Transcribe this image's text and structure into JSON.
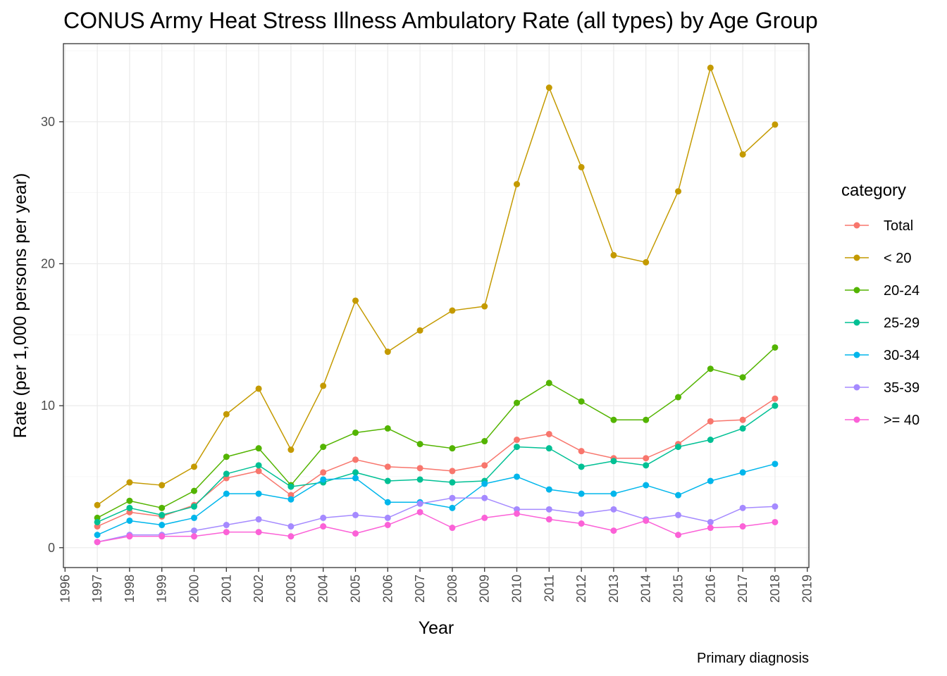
{
  "chart_data": {
    "type": "line",
    "title": "CONUS Army Heat Stress Illness Ambulatory Rate (all types) by Age Group",
    "xlabel": "Year",
    "ylabel": "Rate (per 1,000 persons per year)",
    "caption": "Primary diagnosis",
    "legend_title": "category",
    "legend_position": "right",
    "grid": true,
    "xlim": [
      1995.95,
      2019.05
    ],
    "ylim": [
      -1.4,
      35.5
    ],
    "x_ticks": [
      1996,
      1997,
      1998,
      1999,
      2000,
      2001,
      2002,
      2003,
      2004,
      2005,
      2006,
      2007,
      2008,
      2009,
      2010,
      2011,
      2012,
      2013,
      2014,
      2015,
      2016,
      2017,
      2018,
      2019
    ],
    "x_tick_labels": [
      "1996",
      "1997",
      "1998",
      "1999",
      "2000",
      "2001",
      "2002",
      "2003",
      "2004",
      "2005",
      "2006",
      "2007",
      "2008",
      "2009",
      "2010",
      "2011",
      "2012",
      "2013",
      "2014",
      "2015",
      "2016",
      "2017",
      "2018",
      "2019"
    ],
    "y_ticks": [
      0,
      10,
      20,
      30
    ],
    "y_tick_labels": [
      "0",
      "10",
      "20",
      "30"
    ],
    "x": [
      1997,
      1998,
      1999,
      2000,
      2001,
      2002,
      2003,
      2004,
      2005,
      2006,
      2007,
      2008,
      2009,
      2010,
      2011,
      2012,
      2013,
      2014,
      2015,
      2016,
      2017,
      2018
    ],
    "series": [
      {
        "name": "Total",
        "color": "#F8766D",
        "values": [
          1.5,
          2.5,
          2.2,
          3.0,
          4.9,
          5.4,
          3.7,
          5.3,
          6.2,
          5.7,
          5.6,
          5.4,
          5.8,
          7.6,
          8.0,
          6.8,
          6.3,
          6.3,
          7.3,
          8.9,
          9.0,
          10.5
        ]
      },
      {
        "name": "< 20",
        "color": "#C49A00",
        "values": [
          3.0,
          4.6,
          4.4,
          5.7,
          9.4,
          11.2,
          6.9,
          11.4,
          17.4,
          13.8,
          15.3,
          16.7,
          17.0,
          25.6,
          32.4,
          26.8,
          20.6,
          20.1,
          25.1,
          33.8,
          27.7,
          29.8
        ]
      },
      {
        "name": "20-24",
        "color": "#53B400",
        "values": [
          2.1,
          3.3,
          2.8,
          4.0,
          6.4,
          7.0,
          4.4,
          7.1,
          8.1,
          8.4,
          7.3,
          7.0,
          7.5,
          10.2,
          11.6,
          10.3,
          9.0,
          9.0,
          10.6,
          12.6,
          12.0,
          14.1
        ]
      },
      {
        "name": "25-29",
        "color": "#00C094",
        "values": [
          1.8,
          2.8,
          2.3,
          2.9,
          5.2,
          5.8,
          4.3,
          4.6,
          5.3,
          4.7,
          4.8,
          4.6,
          4.7,
          7.1,
          7.0,
          5.7,
          6.1,
          5.8,
          7.1,
          7.6,
          8.4,
          10.0
        ]
      },
      {
        "name": "30-34",
        "color": "#00B6EB",
        "values": [
          0.9,
          1.9,
          1.6,
          2.1,
          3.8,
          3.8,
          3.4,
          4.8,
          4.9,
          3.2,
          3.2,
          2.8,
          4.5,
          5.0,
          4.1,
          3.8,
          3.8,
          4.4,
          3.7,
          4.7,
          5.3,
          5.9
        ]
      },
      {
        "name": "35-39",
        "color": "#A58AFF",
        "values": [
          0.4,
          0.9,
          0.9,
          1.2,
          1.6,
          2.0,
          1.5,
          2.1,
          2.3,
          2.1,
          3.1,
          3.5,
          3.5,
          2.7,
          2.7,
          2.4,
          2.7,
          2.0,
          2.3,
          1.8,
          2.8,
          2.9
        ]
      },
      {
        "name": ">= 40",
        "color": "#FB61D7",
        "values": [
          0.4,
          0.8,
          0.8,
          0.8,
          1.1,
          1.1,
          0.8,
          1.5,
          1.0,
          1.6,
          2.5,
          1.4,
          2.1,
          2.4,
          2.0,
          1.7,
          1.2,
          1.9,
          0.9,
          1.4,
          1.5,
          1.8
        ]
      }
    ]
  }
}
